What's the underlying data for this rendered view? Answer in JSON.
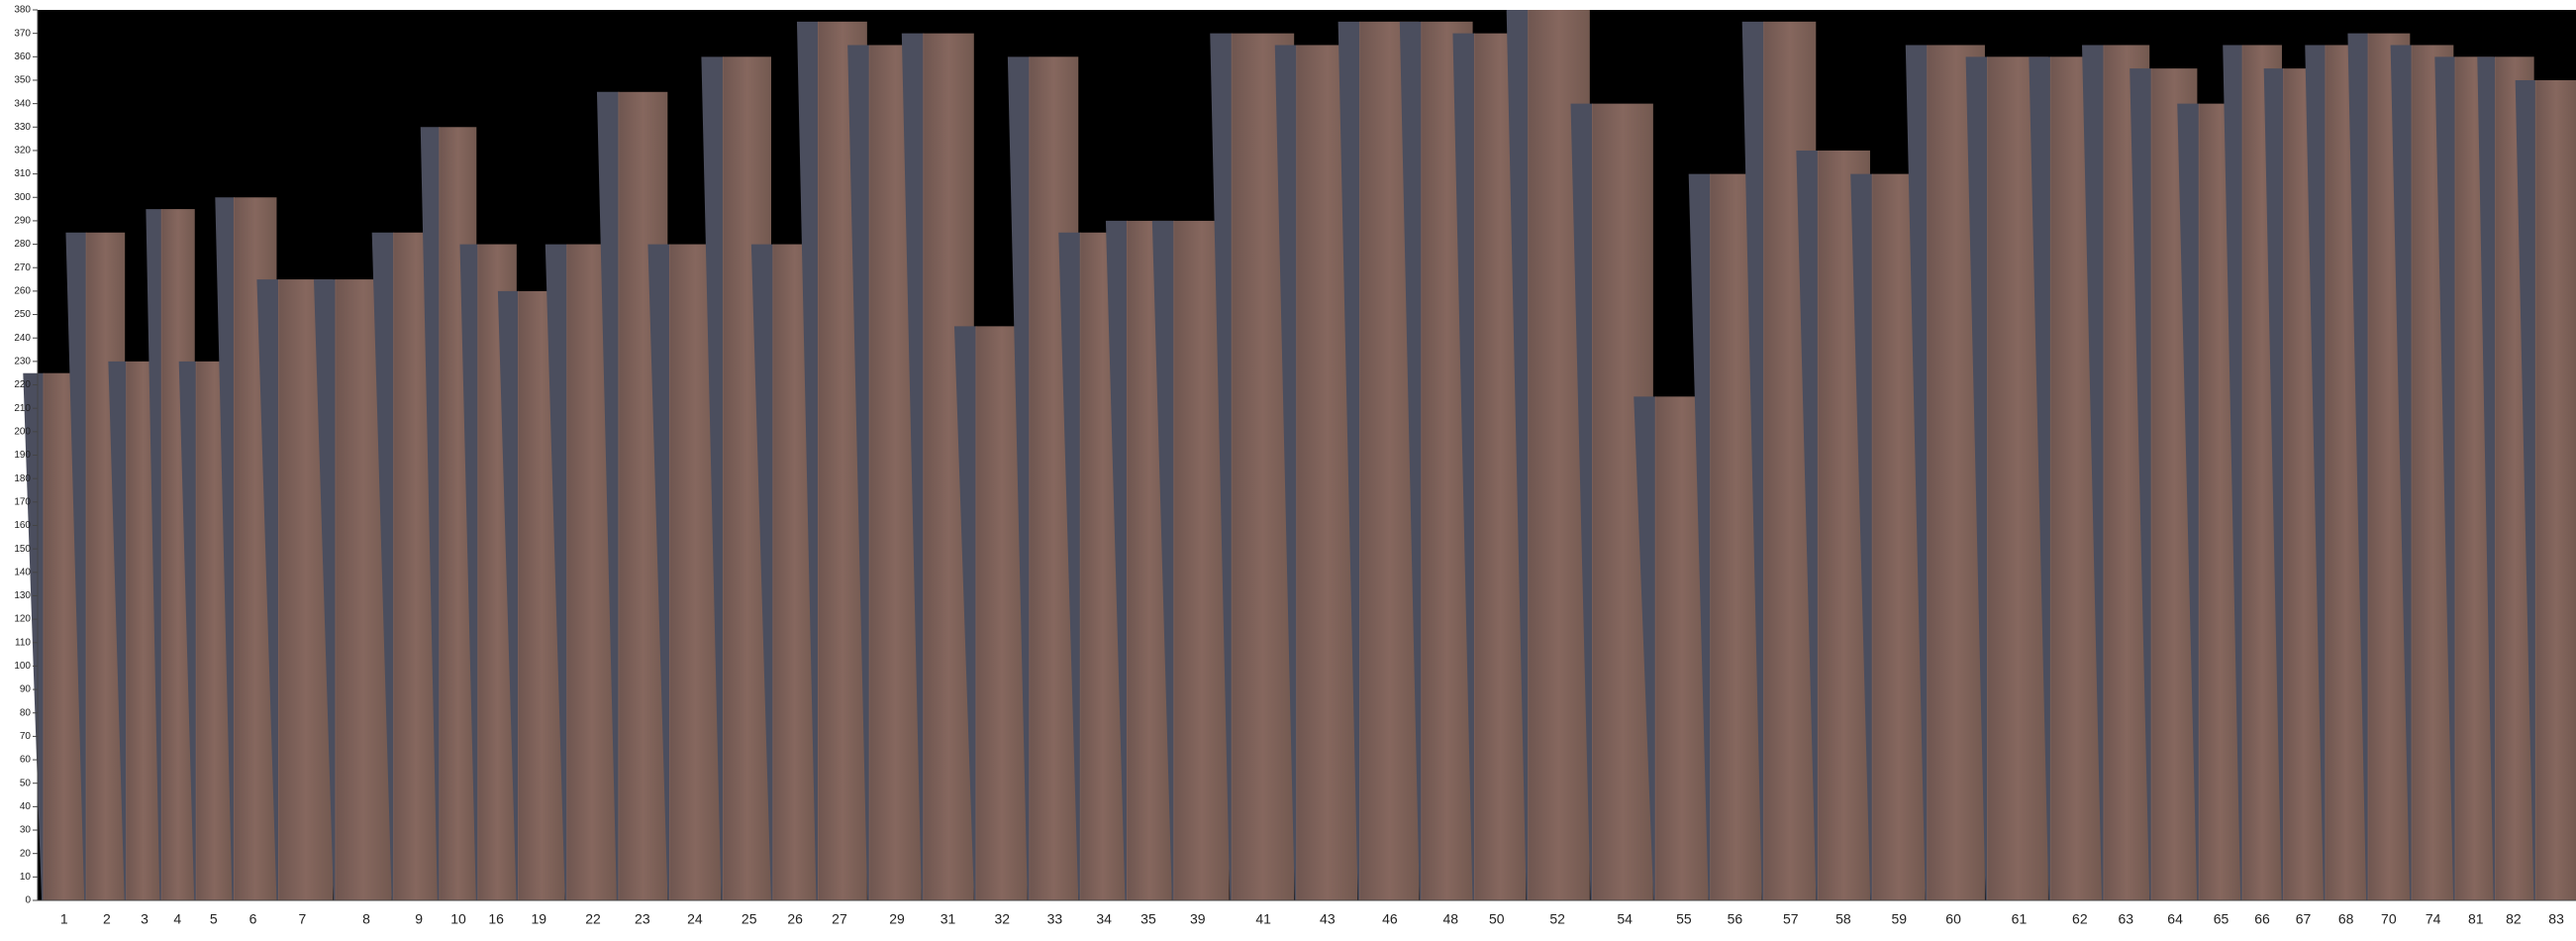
{
  "chart_data": {
    "type": "bar",
    "categories": [
      "1",
      "2",
      "3",
      "4",
      "5",
      "6",
      "7",
      "8",
      "9",
      "10",
      "16",
      "19",
      "22",
      "23",
      "24",
      "25",
      "26",
      "27",
      "29",
      "31",
      "32",
      "33",
      "34",
      "35",
      "39",
      "41",
      "43",
      "46",
      "48",
      "50",
      "52",
      "54",
      "55",
      "56",
      "57",
      "58",
      "59",
      "60",
      "61",
      "62",
      "63",
      "64",
      "65",
      "66",
      "67",
      "68",
      "70",
      "74",
      "81",
      "82",
      "83"
    ],
    "values": [
      225,
      285,
      230,
      295,
      230,
      300,
      265,
      265,
      285,
      330,
      280,
      260,
      280,
      345,
      280,
      360,
      280,
      375,
      365,
      370,
      245,
      360,
      285,
      290,
      290,
      370,
      365,
      375,
      375,
      370,
      380,
      340,
      215,
      310,
      375,
      320,
      310,
      365,
      360,
      360,
      365,
      355,
      340,
      365,
      355,
      365,
      370,
      365,
      360,
      360,
      350
    ],
    "color": "#7c5f57",
    "ylim": [
      0,
      380
    ],
    "yticks": [
      0,
      10,
      20,
      30,
      40,
      50,
      60,
      70,
      80,
      90,
      100,
      110,
      120,
      130,
      140,
      150,
      160,
      170,
      180,
      190,
      200,
      210,
      220,
      230,
      240,
      250,
      260,
      270,
      280,
      290,
      300,
      310,
      320,
      330,
      340,
      350,
      360,
      370,
      380
    ]
  }
}
